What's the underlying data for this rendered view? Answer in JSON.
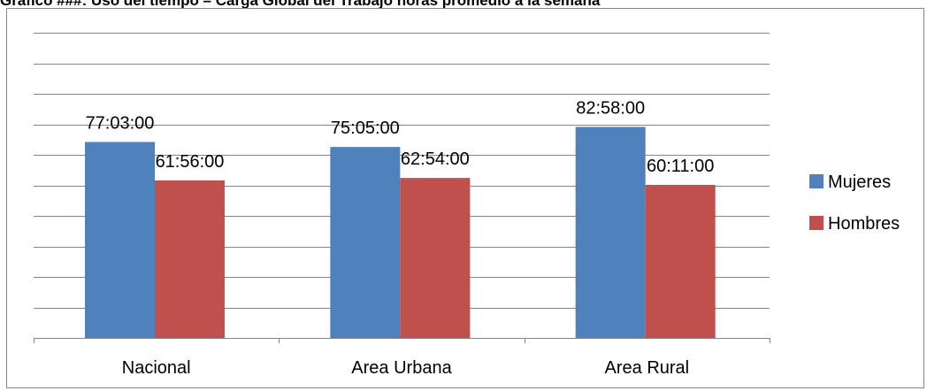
{
  "title": "Gráfico ###: Uso del tiempo – Carga Global del Trabajo horas promedio a la semana",
  "chart_data": {
    "type": "bar",
    "categories": [
      "Nacional",
      "Area Urbana",
      "Area Rural"
    ],
    "series": [
      {
        "name": "Mujeres",
        "values": [
          77.05,
          75.0833,
          82.9667
        ],
        "labels": [
          "77:03:00",
          "75:05:00",
          "82:58:00"
        ],
        "color": "#4f81bd"
      },
      {
        "name": "Hombres",
        "values": [
          61.9333,
          62.9,
          60.1833
        ],
        "labels": [
          "61:56:00",
          "62:54:00",
          "60:11:00"
        ],
        "color": "#c0504d"
      }
    ],
    "xlabel": "",
    "ylabel": "",
    "ylim": [
      0,
      120
    ],
    "y_tick_step": 12,
    "grid": true,
    "legend": "right"
  }
}
